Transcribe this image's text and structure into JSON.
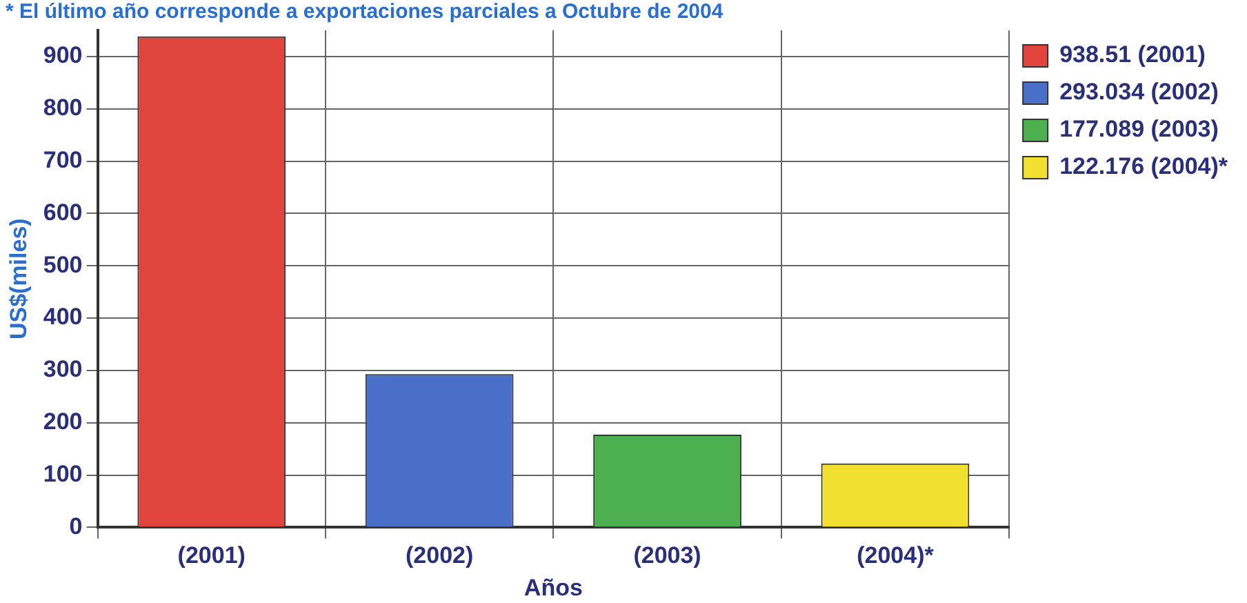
{
  "chart_data": {
    "type": "bar",
    "annotations": [
      "* El último año corresponde a exportaciones parciales a Octubre de 2004"
    ],
    "xlabel": "Años",
    "ylabel": "US$(miles)",
    "categories": [
      "(2001)",
      "(2002)",
      "(2003)",
      "(2004)*"
    ],
    "series": [
      {
        "name": "938.51 (2001)",
        "color": "#e0443c",
        "values": [
          938.51,
          null,
          null,
          null
        ]
      },
      {
        "name": "293.034 (2002)",
        "color": "#4a6fc8",
        "values": [
          null,
          293.034,
          null,
          null
        ]
      },
      {
        "name": "177.089 (2003)",
        "color": "#4caf50",
        "values": [
          null,
          null,
          177.089,
          null
        ]
      },
      {
        "name": "122.176 (2004)*",
        "color": "#f2e030",
        "values": [
          null,
          null,
          null,
          122.176
        ]
      }
    ],
    "ylim": [
      0,
      950
    ],
    "yticks": [
      0,
      100,
      200,
      300,
      400,
      500,
      600,
      700,
      800,
      900
    ],
    "grid": true,
    "legend": "right"
  }
}
